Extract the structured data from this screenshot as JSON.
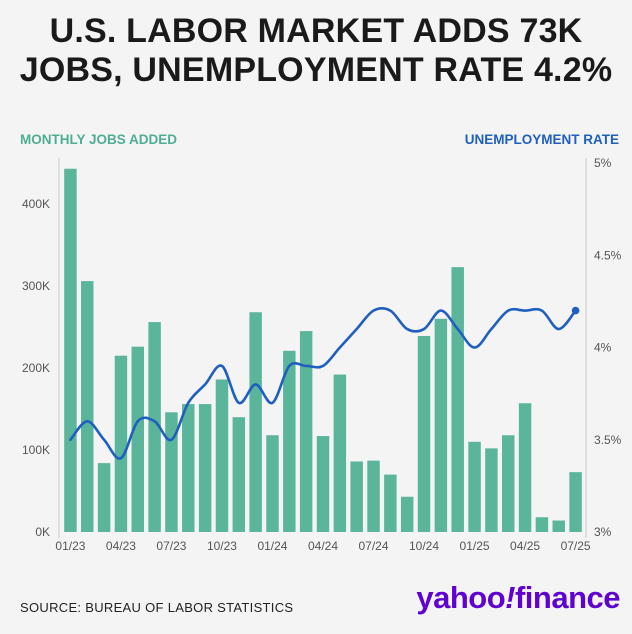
{
  "title": {
    "line1": "U.S. LABOR MARKET ADDS 73K",
    "line2": "JOBS, UNEMPLOYMENT RATE 4.2%"
  },
  "left_axis_title": "MONTHLY JOBS ADDED",
  "right_axis_title": "UNEMPLOYMENT RATE",
  "source": "SOURCE: BUREAU OF LABOR STATISTICS",
  "brand": {
    "word1": "yahoo",
    "mark": "!",
    "word2": "finance"
  },
  "colors": {
    "bars": "#5bb59a",
    "line": "#1f5fbf",
    "left_title": "#4fae92",
    "right_title": "#1f5fbf",
    "brand": "#5f01d1"
  },
  "chart_data": {
    "type": "bar",
    "categories": [
      "01/23",
      "02/23",
      "03/23",
      "04/23",
      "05/23",
      "06/23",
      "07/23",
      "08/23",
      "09/23",
      "10/23",
      "11/23",
      "12/23",
      "01/24",
      "02/24",
      "03/24",
      "04/24",
      "05/24",
      "06/24",
      "07/24",
      "08/24",
      "09/24",
      "10/24",
      "11/24",
      "12/24",
      "01/25",
      "02/25",
      "03/25",
      "04/25",
      "05/25",
      "06/25",
      "07/25"
    ],
    "x_tick_labels": [
      "01/23",
      "04/23",
      "07/23",
      "10/23",
      "01/24",
      "04/24",
      "07/24",
      "10/24",
      "01/25",
      "04/25",
      "07/25"
    ],
    "series": [
      {
        "name": "MONTHLY JOBS ADDED",
        "type": "bar",
        "axis": "left",
        "values": [
          443000,
          306000,
          84000,
          215000,
          226000,
          256000,
          146000,
          156000,
          156000,
          186000,
          140000,
          268000,
          118000,
          221000,
          245000,
          117000,
          192000,
          86000,
          87000,
          70000,
          43000,
          239000,
          260000,
          323000,
          110000,
          102000,
          118000,
          157000,
          18000,
          14000,
          73000
        ]
      },
      {
        "name": "UNEMPLOYMENT RATE",
        "type": "line",
        "axis": "right",
        "values": [
          3.5,
          3.6,
          3.5,
          3.4,
          3.6,
          3.6,
          3.5,
          3.7,
          3.8,
          3.9,
          3.7,
          3.8,
          3.7,
          3.9,
          3.9,
          3.9,
          4.0,
          4.1,
          4.2,
          4.2,
          4.1,
          4.1,
          4.2,
          4.1,
          4.0,
          4.1,
          4.2,
          4.2,
          4.2,
          4.1,
          4.2
        ]
      }
    ],
    "left_axis": {
      "ylim": [
        0,
        450000
      ],
      "ticks": [
        0,
        100000,
        200000,
        300000,
        400000
      ],
      "tick_labels": [
        "0K",
        "100K",
        "200K",
        "300K",
        "400K"
      ]
    },
    "right_axis": {
      "ylim": [
        3,
        5
      ],
      "ticks": [
        3,
        3.5,
        4,
        4.5,
        5
      ],
      "tick_labels": [
        "3%",
        "3.5%",
        "4%",
        "4.5%",
        "5%"
      ]
    },
    "grid": false
  }
}
